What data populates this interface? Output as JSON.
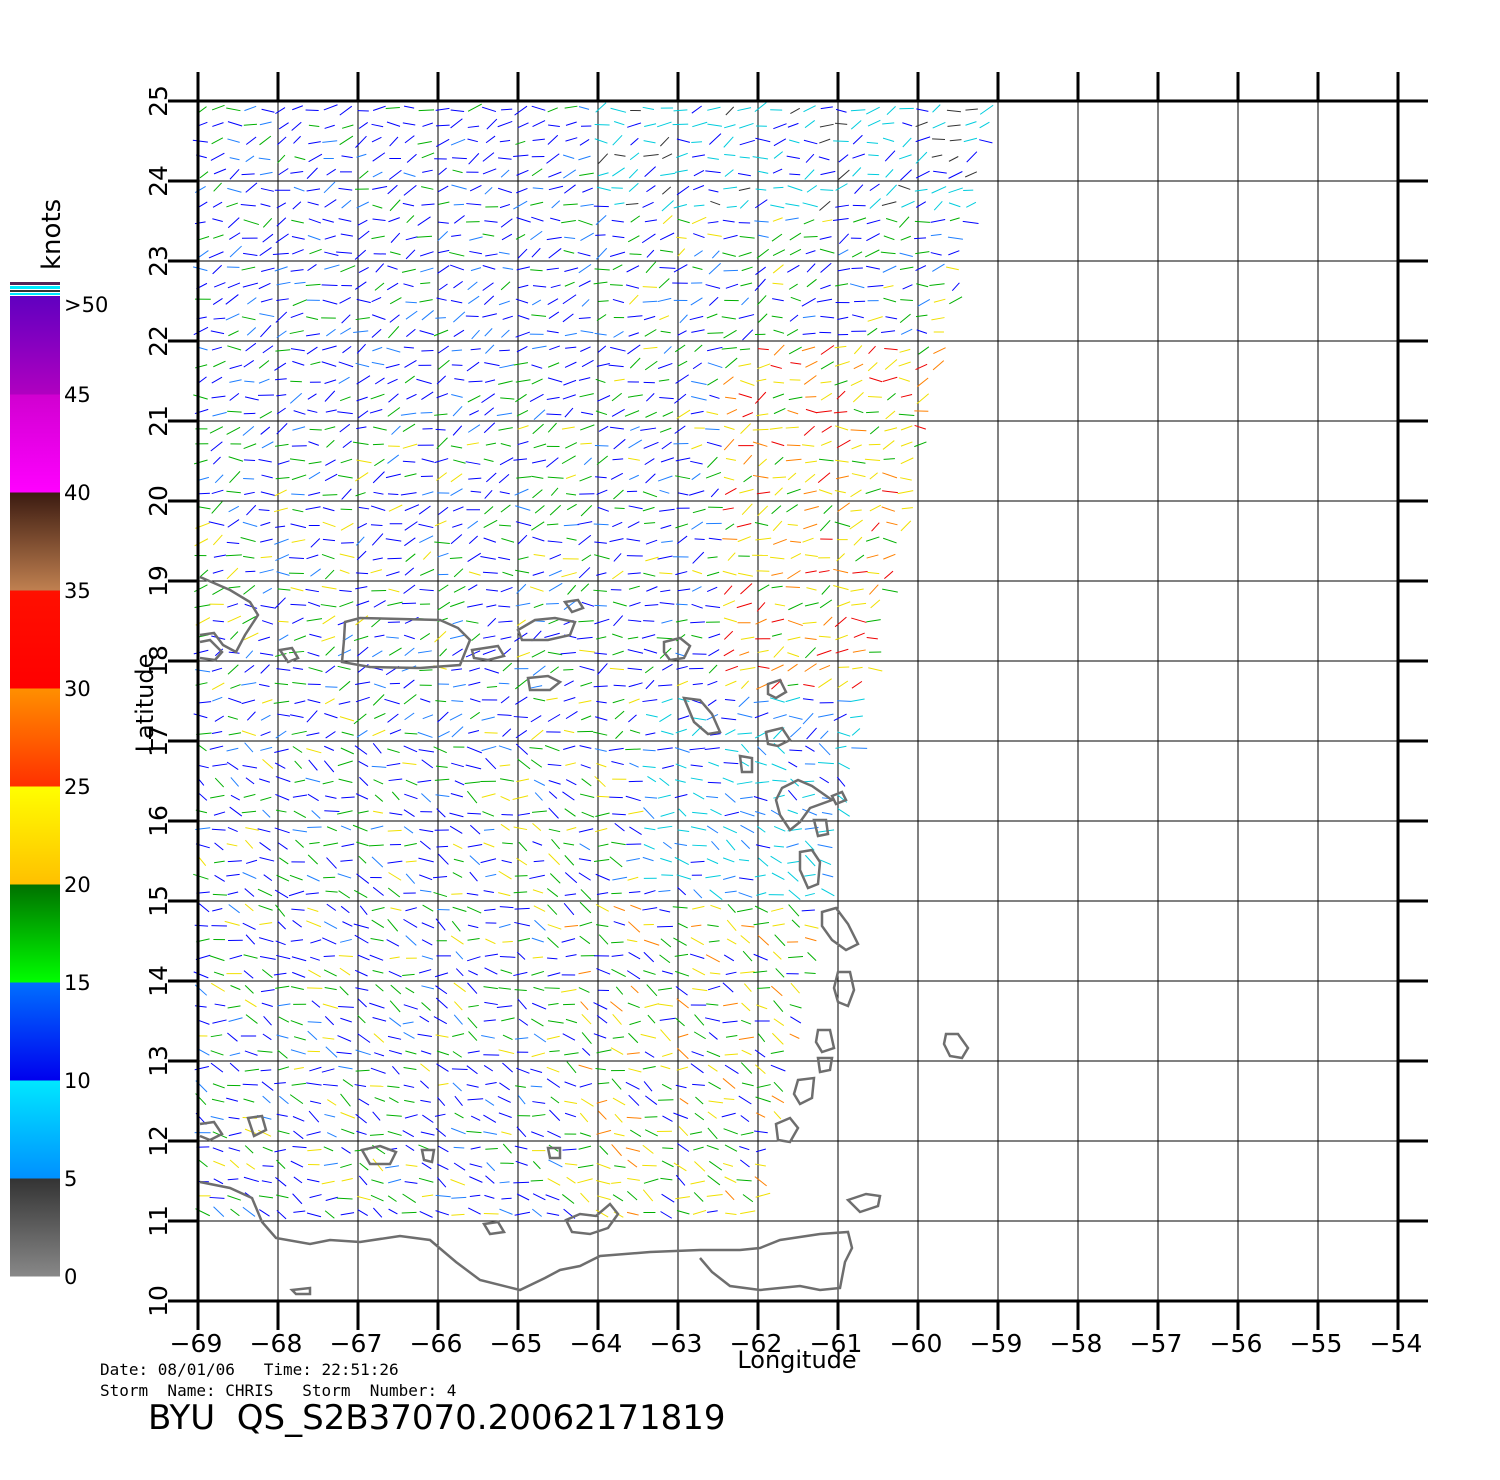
{
  "map": {
    "x_label": "Longitude",
    "y_label": "Latitude",
    "lon_ticks": [
      "-69",
      "-68",
      "-67",
      "-66",
      "-65",
      "-64",
      "-63",
      "-62",
      "-61",
      "-60",
      "-59",
      "-58",
      "-57",
      "-56",
      "-55",
      "-54"
    ],
    "lat_ticks": [
      "10",
      "11",
      "12",
      "13",
      "14",
      "15",
      "16",
      "17",
      "18",
      "19",
      "20",
      "21",
      "22",
      "23",
      "24",
      "25"
    ],
    "lon_range": [
      -69,
      -54
    ],
    "lat_range": [
      10,
      25
    ],
    "coastline_color": "#6e6e6e",
    "wind_field": {
      "swath_corners": [
        [
          -69,
          25
        ],
        [
          -59,
          25
        ],
        [
          -62,
          11
        ],
        [
          -69,
          11
        ]
      ],
      "vector_colors": [
        "#0000ff",
        "#1f7fff",
        "#00ccdd",
        "#00b000",
        "#f0e000",
        "#ff8000",
        "#ee0000",
        "#5a2a2a",
        "#8000c0",
        "#333333"
      ]
    }
  },
  "legend": {
    "title": "knots",
    "labels": [
      "0",
      "5",
      "10",
      "15",
      "20",
      "25",
      "30",
      "35",
      "40",
      "45",
      ">50"
    ],
    "bands": [
      {
        "from": 0,
        "to": 5,
        "top": "#333333",
        "bottom": "#888888"
      },
      {
        "from": 5,
        "to": 10,
        "top": "#00e8ff",
        "bottom": "#0090ff"
      },
      {
        "from": 10,
        "to": 15,
        "top": "#0070ff",
        "bottom": "#0000ee"
      },
      {
        "from": 15,
        "to": 20,
        "top": "#007000",
        "bottom": "#00ff00"
      },
      {
        "from": 20,
        "to": 25,
        "top": "#ffff00",
        "bottom": "#ffc000"
      },
      {
        "from": 25,
        "to": 30,
        "top": "#ff9000",
        "bottom": "#ff3000"
      },
      {
        "from": 30,
        "to": 35,
        "top": "#ff1000",
        "bottom": "#ff0000"
      },
      {
        "from": 35,
        "to": 40,
        "top": "#3a1a10",
        "bottom": "#c08050"
      },
      {
        "from": 40,
        "to": 45,
        "top": "#d000d0",
        "bottom": "#ff00ff"
      },
      {
        "from": 45,
        "to": 50,
        "top": "#6000c0",
        "bottom": "#b000c0"
      }
    ]
  },
  "info": {
    "line1": "Date: 08/01/06   Time: 22:51:26",
    "line2": "Storm  Name: CHRIS   Storm  Number: 4"
  },
  "title": "BYU  QS_S2B37070.20062171819"
}
